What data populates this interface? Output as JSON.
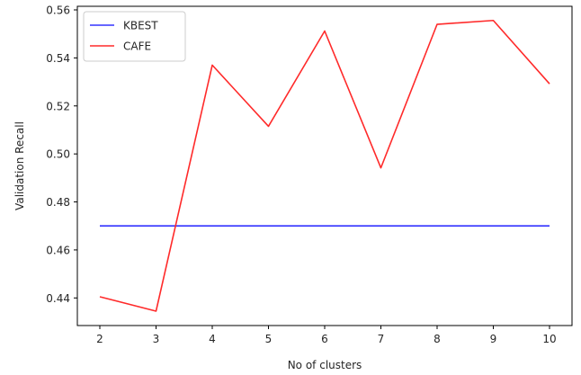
{
  "chart_data": {
    "type": "line",
    "x": [
      2,
      3,
      4,
      5,
      6,
      7,
      8,
      9,
      10
    ],
    "series": [
      {
        "name": "KBEST",
        "color": "#3333ff",
        "values": [
          0.47,
          0.47,
          0.47,
          0.47,
          0.47,
          0.47,
          0.47,
          0.47,
          0.47
        ]
      },
      {
        "name": "CAFE",
        "color": "#ff2a2a",
        "values": [
          0.4405,
          0.4345,
          0.537,
          0.5115,
          0.5512,
          0.4942,
          0.554,
          0.5556,
          0.5292
        ]
      }
    ],
    "xlabel": "No of clusters",
    "ylabel": "Validation Recall",
    "xlim": [
      1.6,
      10.4
    ],
    "ylim": [
      0.4285,
      0.5615
    ],
    "xticks": [
      2,
      3,
      4,
      5,
      6,
      7,
      8,
      9,
      10
    ],
    "yticks": [
      0.44,
      0.46,
      0.48,
      0.5,
      0.52,
      0.54,
      0.56
    ],
    "ytick_labels": [
      "0.44",
      "0.46",
      "0.48",
      "0.50",
      "0.52",
      "0.54",
      "0.56"
    ],
    "grid": false,
    "legend_position": "top-left"
  }
}
